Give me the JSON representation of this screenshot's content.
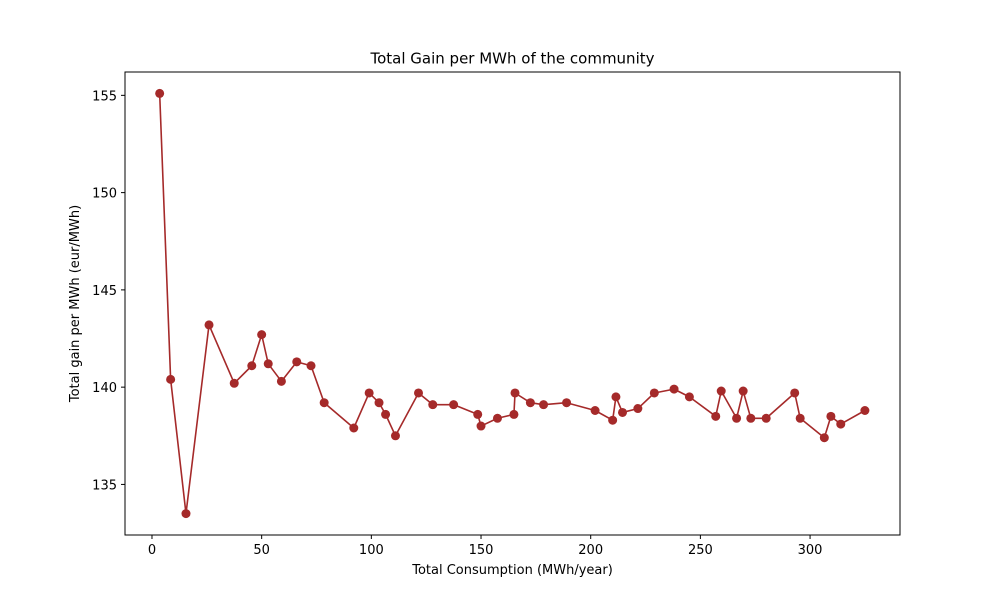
{
  "chart_data": {
    "type": "line",
    "title": "Total Gain per MWh of the community",
    "xlabel": "Total Consumption (MWh/year)",
    "ylabel": "Total gain per MWh (eur/MWh)",
    "xlim": [
      -12.3,
      341
    ],
    "ylim": [
      132.4,
      156.2
    ],
    "xticks": [
      0,
      50,
      100,
      150,
      200,
      250,
      300
    ],
    "yticks": [
      135,
      140,
      145,
      150,
      155
    ],
    "grid": false,
    "color": "#a52a2a",
    "marker": "circle",
    "series": [
      {
        "x": [
          3.5,
          8.5,
          15.5,
          26,
          37.5,
          45.5,
          50,
          53,
          59,
          66,
          72.5,
          78.5,
          92,
          99,
          103.5,
          106.5,
          111,
          121.5,
          128,
          137.5,
          148.5,
          150,
          157.5,
          165,
          165.5,
          172.5,
          178.5,
          189,
          202,
          210,
          211.5,
          214.5,
          221.5,
          229,
          238,
          245,
          257,
          259.5,
          266.5,
          269.5,
          273,
          280,
          293,
          295.5,
          306.5,
          309.5,
          314,
          325
        ],
        "y": [
          155.1,
          140.4,
          133.5,
          143.2,
          140.2,
          141.1,
          142.7,
          141.2,
          140.3,
          141.3,
          141.1,
          139.2,
          137.9,
          139.7,
          139.2,
          138.6,
          137.5,
          139.7,
          139.1,
          139.1,
          138.6,
          138.0,
          138.4,
          138.6,
          139.7,
          139.2,
          139.1,
          139.2,
          138.8,
          138.3,
          139.5,
          138.7,
          138.9,
          139.7,
          139.9,
          139.5,
          138.5,
          139.8,
          138.4,
          139.8,
          138.4,
          138.4,
          139.7,
          138.4,
          137.4,
          138.5,
          138.1,
          138.8
        ]
      }
    ]
  }
}
